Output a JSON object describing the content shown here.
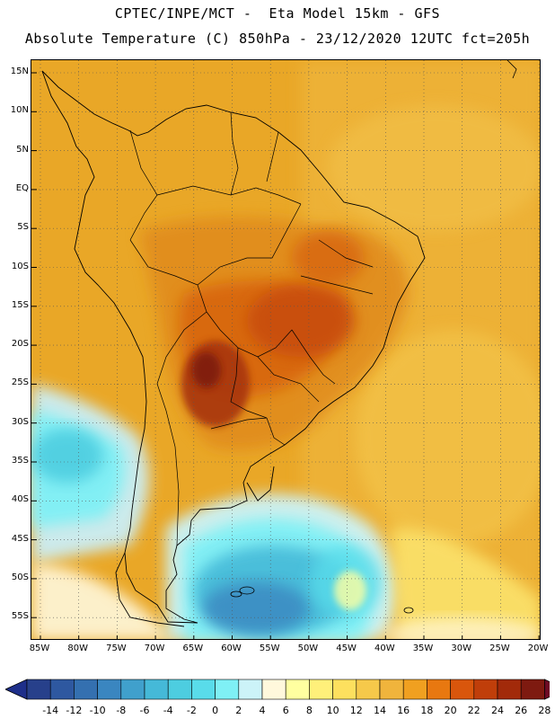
{
  "header": {
    "line1": "CPTEC/INPE/MCT -  Eta Model 15km - GFS",
    "line2": "Absolute Temperature (C) 850hPa - 23/12/2020 12UTC fct=205h"
  },
  "map": {
    "region": "South America",
    "variable": "Absolute Temperature (C) 850hPa",
    "lat_ticks": [
      "15N",
      "10N",
      "5N",
      "EQ",
      "5S",
      "10S",
      "15S",
      "20S",
      "25S",
      "30S",
      "35S",
      "40S",
      "45S",
      "50S",
      "55S"
    ],
    "lon_ticks": [
      "85W",
      "80W",
      "75W",
      "70W",
      "65W",
      "60W",
      "55W",
      "50W",
      "45W",
      "40W",
      "35W",
      "30W",
      "25W",
      "20W"
    ],
    "lon_range": [
      -86,
      -20
    ],
    "lat_range": [
      -58,
      16
    ]
  },
  "colorbar": {
    "labels": [
      "-14",
      "-12",
      "-10",
      "-8",
      "-6",
      "-4",
      "-2",
      "0",
      "2",
      "4",
      "6",
      "8",
      "10",
      "12",
      "14",
      "16",
      "18",
      "20",
      "22",
      "24",
      "26",
      "28"
    ],
    "colors": [
      "#27408b",
      "#2e58a0",
      "#3470b0",
      "#3a86c0",
      "#40a0cc",
      "#45b9d8",
      "#4dcde0",
      "#59dcea",
      "#7ff0f5",
      "#ccf3f8",
      "#fff8dc",
      "#ffffa0",
      "#fff07a",
      "#fde05e",
      "#f6c94a",
      "#f0b43c",
      "#f0a020",
      "#e87810",
      "#d9560c",
      "#c03e0a",
      "#a22a0a",
      "#7e1a10"
    ],
    "low_end_color": "#1e2f8a",
    "high_end_color": "#6e0a24"
  }
}
